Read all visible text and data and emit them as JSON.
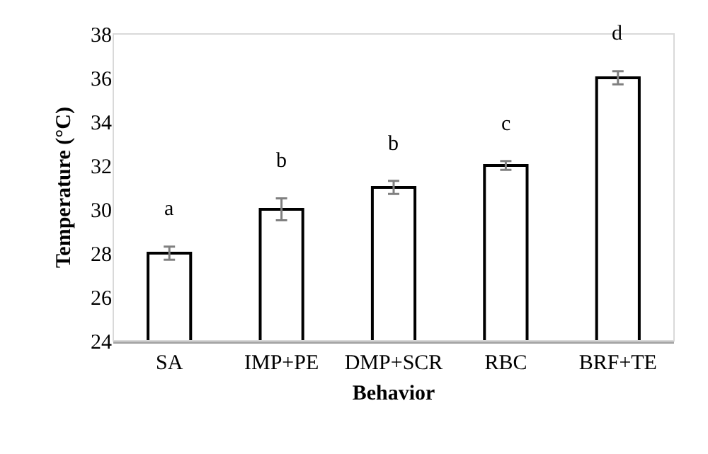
{
  "chart_data": {
    "type": "bar",
    "xlabel": "Behavior",
    "ylabel": "Temperature (°C)",
    "categories": [
      "SA",
      "IMP+PE",
      "DMP+SCR",
      "RBC",
      "BRF+TE"
    ],
    "values": [
      28,
      30,
      31,
      32,
      36
    ],
    "errors": [
      0.3,
      0.5,
      0.3,
      0.2,
      0.3
    ],
    "color": "#ffffff",
    "ylim": [
      24,
      38
    ],
    "yticks": [
      24,
      26,
      28,
      30,
      32,
      34,
      36,
      38
    ],
    "grid": false,
    "legend": false,
    "annotations": [
      "a",
      "b",
      "b",
      "c",
      "d"
    ]
  }
}
